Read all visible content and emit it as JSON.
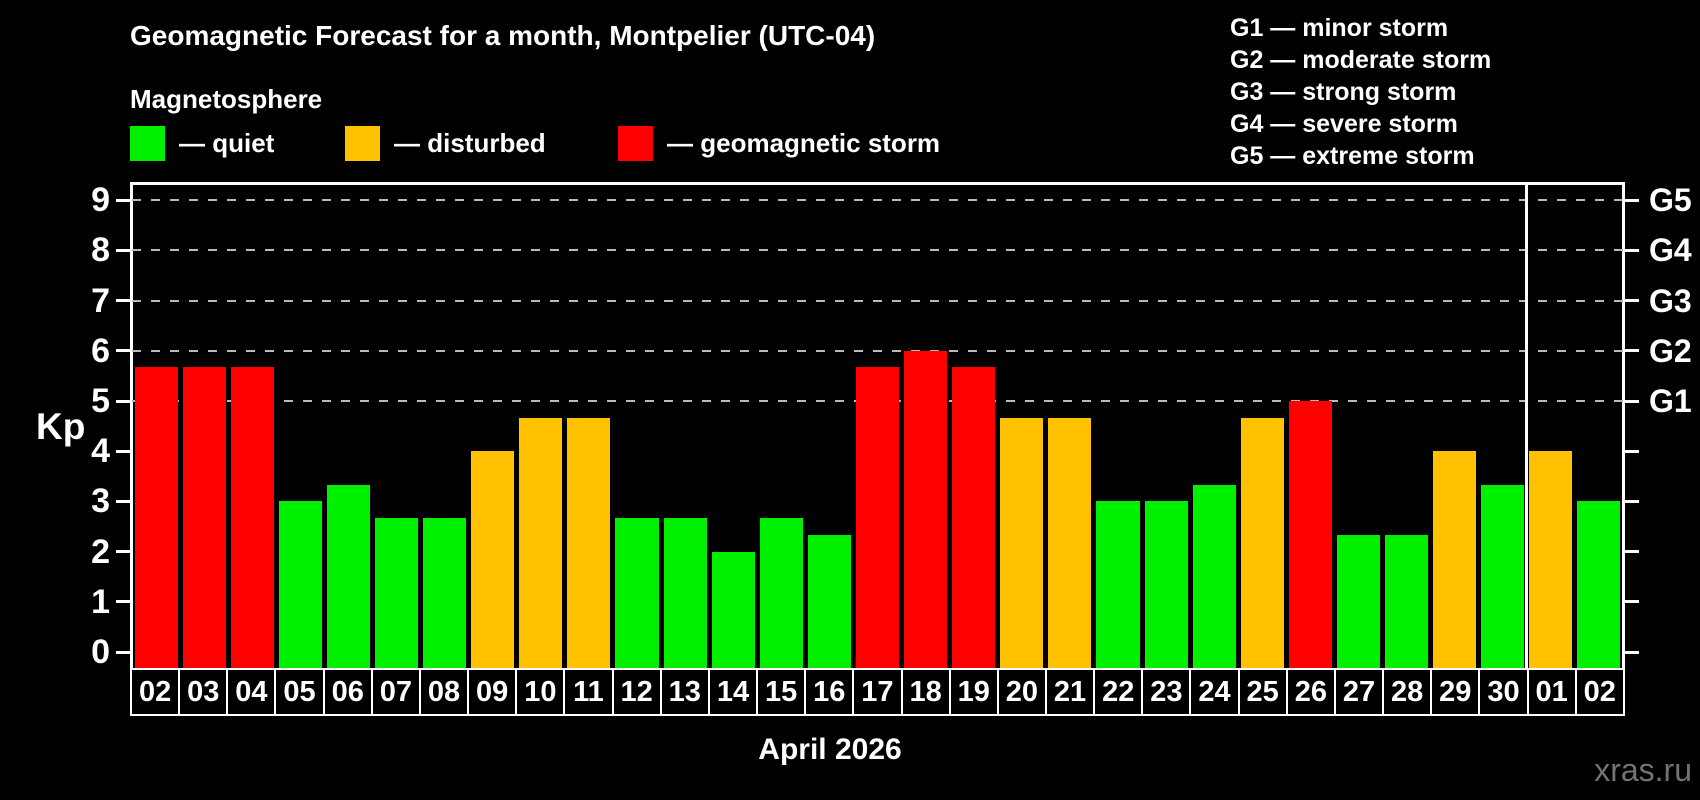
{
  "title": "Geomagnetic Forecast for a month, Montpelier (UTC-04)",
  "subtitle": "Magnetosphere",
  "legend": {
    "quiet_label": "— quiet",
    "disturbed_label": "— disturbed",
    "storm_label": "— geomagnetic storm"
  },
  "status_colors": {
    "quiet": "#00f000",
    "disturbed": "#ffc100",
    "storm": "#ff0000"
  },
  "g_scale_legend": [
    "G1 — minor storm",
    "G2 — moderate storm",
    "G3 — strong storm",
    "G4 — severe storm",
    "G5 — extreme storm"
  ],
  "watermark": "xras.ru",
  "chart_data": {
    "type": "bar",
    "title": "Geomagnetic Forecast for a month, Montpelier (UTC-04)",
    "xlabel": "April 2026",
    "ylabel": "Kp",
    "ylim": [
      0,
      9
    ],
    "yticks": [
      0,
      1,
      2,
      3,
      4,
      5,
      6,
      7,
      8,
      9
    ],
    "gridlines_at": [
      5,
      6,
      7,
      8,
      9
    ],
    "grid": "dashed horizontal at storm levels only",
    "legend_position": "top-left",
    "right_axis": [
      {
        "kp": 5,
        "label": "G1"
      },
      {
        "kp": 6,
        "label": "G2"
      },
      {
        "kp": 7,
        "label": "G3"
      },
      {
        "kp": 8,
        "label": "G4"
      },
      {
        "kp": 9,
        "label": "G5"
      }
    ],
    "month_separator_after_index": 28,
    "bars": [
      {
        "date": "02",
        "kp": 5.67,
        "status": "storm"
      },
      {
        "date": "03",
        "kp": 5.67,
        "status": "storm"
      },
      {
        "date": "04",
        "kp": 5.67,
        "status": "storm"
      },
      {
        "date": "05",
        "kp": 3.0,
        "status": "quiet"
      },
      {
        "date": "06",
        "kp": 3.33,
        "status": "quiet"
      },
      {
        "date": "07",
        "kp": 2.67,
        "status": "quiet"
      },
      {
        "date": "08",
        "kp": 2.67,
        "status": "quiet"
      },
      {
        "date": "09",
        "kp": 4.0,
        "status": "disturbed"
      },
      {
        "date": "10",
        "kp": 4.67,
        "status": "disturbed"
      },
      {
        "date": "11",
        "kp": 4.67,
        "status": "disturbed"
      },
      {
        "date": "12",
        "kp": 2.67,
        "status": "quiet"
      },
      {
        "date": "13",
        "kp": 2.67,
        "status": "quiet"
      },
      {
        "date": "14",
        "kp": 2.0,
        "status": "quiet"
      },
      {
        "date": "15",
        "kp": 2.67,
        "status": "quiet"
      },
      {
        "date": "16",
        "kp": 2.33,
        "status": "quiet"
      },
      {
        "date": "17",
        "kp": 5.67,
        "status": "storm"
      },
      {
        "date": "18",
        "kp": 6.0,
        "status": "storm"
      },
      {
        "date": "19",
        "kp": 5.67,
        "status": "storm"
      },
      {
        "date": "20",
        "kp": 4.67,
        "status": "disturbed"
      },
      {
        "date": "21",
        "kp": 4.67,
        "status": "disturbed"
      },
      {
        "date": "22",
        "kp": 3.0,
        "status": "quiet"
      },
      {
        "date": "23",
        "kp": 3.0,
        "status": "quiet"
      },
      {
        "date": "24",
        "kp": 3.33,
        "status": "quiet"
      },
      {
        "date": "25",
        "kp": 4.67,
        "status": "disturbed"
      },
      {
        "date": "26",
        "kp": 5.0,
        "status": "storm"
      },
      {
        "date": "27",
        "kp": 2.33,
        "status": "quiet"
      },
      {
        "date": "28",
        "kp": 2.33,
        "status": "quiet"
      },
      {
        "date": "29",
        "kp": 4.0,
        "status": "disturbed"
      },
      {
        "date": "30",
        "kp": 3.33,
        "status": "quiet"
      },
      {
        "date": "01",
        "kp": 4.0,
        "status": "disturbed"
      },
      {
        "date": "02",
        "kp": 3.0,
        "status": "quiet"
      }
    ]
  }
}
